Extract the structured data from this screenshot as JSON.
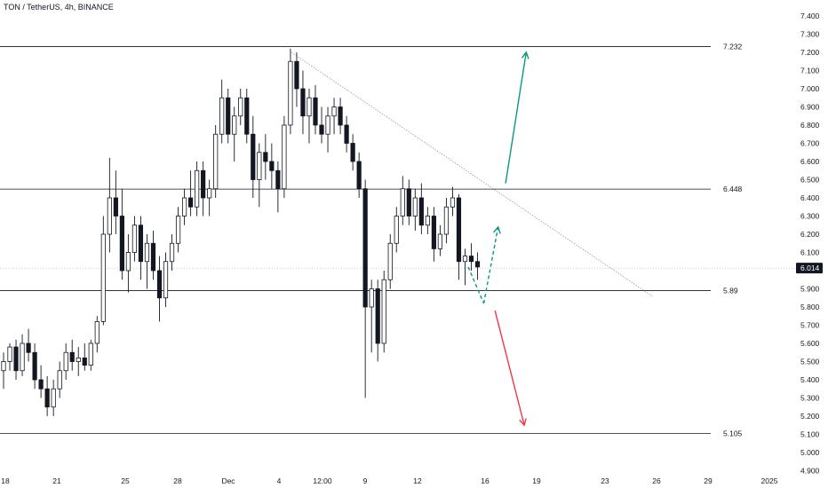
{
  "header": {
    "title": "TON / TetherUS, 4h, BINANCE"
  },
  "price_axis": {
    "ticks": [
      "7.400",
      "7.300",
      "7.200",
      "7.100",
      "7.000",
      "6.900",
      "6.800",
      "6.700",
      "6.600",
      "6.500",
      "6.400",
      "6.300",
      "6.200",
      "6.100",
      "6.000",
      "5.900",
      "5.800",
      "5.700",
      "5.600",
      "5.500",
      "5.400",
      "5.300",
      "5.200",
      "5.100",
      "5.000",
      "4.900"
    ],
    "current_price": "6.014"
  },
  "time_axis": {
    "labels": [
      "18",
      "21",
      "25",
      "28",
      "Dec",
      "4",
      "12:00",
      "9",
      "12",
      "16",
      "19",
      "23",
      "26",
      "29",
      "2025"
    ]
  },
  "chart_data": {
    "type": "candlestick",
    "symbol": "TON / TetherUS",
    "interval": "4h",
    "exchange": "BINANCE",
    "ylim": [
      4.88,
      7.45
    ],
    "horizontal_levels": [
      {
        "label": "7.232",
        "value": 7.232
      },
      {
        "label": "6.448",
        "value": 6.448
      },
      {
        "label": "5.89",
        "value": 5.89
      },
      {
        "label": "5.105",
        "value": 5.105
      }
    ],
    "current_price": 6.014,
    "candles": [
      [
        5.45,
        5.55,
        5.35,
        5.5
      ],
      [
        5.5,
        5.6,
        5.45,
        5.58
      ],
      [
        5.58,
        5.62,
        5.4,
        5.45
      ],
      [
        5.45,
        5.65,
        5.42,
        5.6
      ],
      [
        5.6,
        5.68,
        5.5,
        5.55
      ],
      [
        5.55,
        5.6,
        5.35,
        5.4
      ],
      [
        5.4,
        5.48,
        5.3,
        5.35
      ],
      [
        5.35,
        5.42,
        5.2,
        5.25
      ],
      [
        5.25,
        5.4,
        5.2,
        5.35
      ],
      [
        5.35,
        5.5,
        5.3,
        5.45
      ],
      [
        5.45,
        5.6,
        5.4,
        5.55
      ],
      [
        5.55,
        5.62,
        5.45,
        5.5
      ],
      [
        5.5,
        5.58,
        5.42,
        5.52
      ],
      [
        5.52,
        5.6,
        5.45,
        5.48
      ],
      [
        5.48,
        5.62,
        5.45,
        5.6
      ],
      [
        5.6,
        5.75,
        5.55,
        5.72
      ],
      [
        5.72,
        6.3,
        5.7,
        6.2
      ],
      [
        6.2,
        6.62,
        6.1,
        6.4
      ],
      [
        6.4,
        6.55,
        6.2,
        6.3
      ],
      [
        6.3,
        6.45,
        5.95,
        6.0
      ],
      [
        6.0,
        6.2,
        5.88,
        6.1
      ],
      [
        6.1,
        6.3,
        6.05,
        6.25
      ],
      [
        6.25,
        6.3,
        5.95,
        6.05
      ],
      [
        6.05,
        6.2,
        5.9,
        6.15
      ],
      [
        6.15,
        6.22,
        5.95,
        6.0
      ],
      [
        6.0,
        6.08,
        5.72,
        5.85
      ],
      [
        5.85,
        6.1,
        5.8,
        6.05
      ],
      [
        6.05,
        6.2,
        6.0,
        6.15
      ],
      [
        6.15,
        6.35,
        6.1,
        6.3
      ],
      [
        6.3,
        6.45,
        6.25,
        6.4
      ],
      [
        6.4,
        6.55,
        6.3,
        6.35
      ],
      [
        6.35,
        6.6,
        6.3,
        6.55
      ],
      [
        6.55,
        6.6,
        6.3,
        6.4
      ],
      [
        6.4,
        6.5,
        6.3,
        6.45
      ],
      [
        6.45,
        6.8,
        6.4,
        6.75
      ],
      [
        6.75,
        7.05,
        6.7,
        6.95
      ],
      [
        6.95,
        7.0,
        6.7,
        6.75
      ],
      [
        6.75,
        6.9,
        6.6,
        6.85
      ],
      [
        6.85,
        7.0,
        6.8,
        6.95
      ],
      [
        6.95,
        7.0,
        6.7,
        6.75
      ],
      [
        6.75,
        6.85,
        6.4,
        6.5
      ],
      [
        6.5,
        6.7,
        6.35,
        6.65
      ],
      [
        6.65,
        6.75,
        6.5,
        6.6
      ],
      [
        6.6,
        6.7,
        6.45,
        6.55
      ],
      [
        6.55,
        6.6,
        6.32,
        6.45
      ],
      [
        6.45,
        6.85,
        6.4,
        6.8
      ],
      [
        6.8,
        7.22,
        6.75,
        7.15
      ],
      [
        7.15,
        7.2,
        6.9,
        7.0
      ],
      [
        7.0,
        7.1,
        6.75,
        6.85
      ],
      [
        6.85,
        7.0,
        6.7,
        6.95
      ],
      [
        6.95,
        7.02,
        6.75,
        6.8
      ],
      [
        6.8,
        6.9,
        6.7,
        6.75
      ],
      [
        6.75,
        6.9,
        6.65,
        6.85
      ],
      [
        6.85,
        6.95,
        6.75,
        6.9
      ],
      [
        6.9,
        6.95,
        6.75,
        6.8
      ],
      [
        6.8,
        6.85,
        6.65,
        6.7
      ],
      [
        6.7,
        6.75,
        6.55,
        6.6
      ],
      [
        6.6,
        6.65,
        6.4,
        6.45
      ],
      [
        6.45,
        6.5,
        5.3,
        5.8
      ],
      [
        5.8,
        5.95,
        5.55,
        5.9
      ],
      [
        5.9,
        5.95,
        5.5,
        5.6
      ],
      [
        5.6,
        6.0,
        5.55,
        5.95
      ],
      [
        5.95,
        6.2,
        5.9,
        6.15
      ],
      [
        6.15,
        6.35,
        6.1,
        6.3
      ],
      [
        6.3,
        6.52,
        6.25,
        6.45
      ],
      [
        6.45,
        6.5,
        6.25,
        6.3
      ],
      [
        6.3,
        6.45,
        6.22,
        6.4
      ],
      [
        6.4,
        6.48,
        6.2,
        6.25
      ],
      [
        6.25,
        6.35,
        6.2,
        6.3
      ],
      [
        6.3,
        6.35,
        6.05,
        6.12
      ],
      [
        6.12,
        6.25,
        6.08,
        6.2
      ],
      [
        6.2,
        6.4,
        6.15,
        6.35
      ],
      [
        6.35,
        6.46,
        6.3,
        6.4
      ],
      [
        6.4,
        6.42,
        5.95,
        6.05
      ],
      [
        6.05,
        6.12,
        5.92,
        6.08
      ],
      [
        6.08,
        6.15,
        6.0,
        6.05
      ],
      [
        6.05,
        6.1,
        5.95,
        6.02
      ]
    ],
    "projections": [
      {
        "kind": "dashed-down",
        "color": "#089981",
        "from": [
          74.5,
          6.02
        ],
        "to": [
          77,
          5.82
        ]
      },
      {
        "kind": "dashed-up",
        "color": "#089981",
        "from": [
          77,
          5.82
        ],
        "to": [
          79.3,
          6.24
        ]
      },
      {
        "kind": "arrow-up",
        "color": "#089981",
        "from": [
          80.5,
          6.48
        ],
        "to": [
          83.8,
          7.2
        ]
      },
      {
        "kind": "arrow-down",
        "color": "#f23645",
        "from": [
          78.8,
          5.78
        ],
        "to": [
          83.5,
          5.15
        ]
      }
    ]
  },
  "colors": {
    "grid_line": "#131722",
    "trend_line": "#9598a1",
    "bull_fill": "#ffffff",
    "bear_fill": "#131722",
    "green_arrow": "#089981",
    "red_arrow": "#f23645",
    "price_badge": "#131722"
  }
}
